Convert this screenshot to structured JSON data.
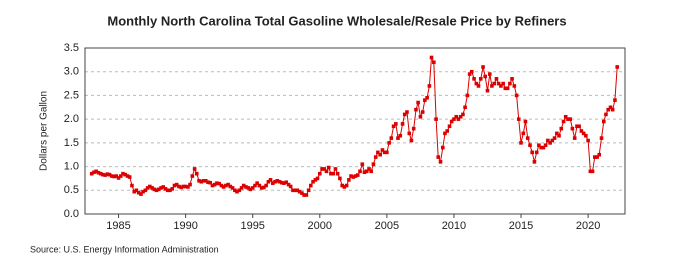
{
  "chart_data": {
    "type": "scatter",
    "title": "Monthly North Carolina Total Gasoline Wholesale/Resale Price by Refiners",
    "y_label": "Dollars per Gallon",
    "source": "Source: U.S. Energy Information Administration",
    "color": "#dd0000",
    "grid": true,
    "xlim": [
      1982.5,
      2022.75
    ],
    "xticks": [
      1985,
      1990,
      1995,
      2000,
      2005,
      2010,
      2015,
      2020
    ],
    "ylim": [
      0,
      3.5
    ],
    "yticks": [
      {
        "value": 0,
        "label": "0.0"
      },
      0.5,
      {
        "value": 1,
        "label": "1.0"
      },
      1.5,
      {
        "value": 2,
        "label": "2.0"
      },
      2.5,
      {
        "value": 3,
        "label": "3.0"
      },
      3.5
    ],
    "x": [
      1983,
      1983.17,
      1983.33,
      1983.5,
      1983.67,
      1983.83,
      1984,
      1984.17,
      1984.33,
      1984.5,
      1984.67,
      1984.83,
      1985,
      1985.17,
      1985.33,
      1985.5,
      1985.67,
      1985.83,
      1986,
      1986.17,
      1986.33,
      1986.5,
      1986.67,
      1986.83,
      1987,
      1987.17,
      1987.33,
      1987.5,
      1987.67,
      1987.83,
      1988,
      1988.17,
      1988.33,
      1988.5,
      1988.67,
      1988.83,
      1989,
      1989.17,
      1989.33,
      1989.5,
      1989.67,
      1989.83,
      1990,
      1990.17,
      1990.33,
      1990.5,
      1990.67,
      1990.83,
      1991,
      1991.17,
      1991.33,
      1991.5,
      1991.67,
      1991.83,
      1992,
      1992.17,
      1992.33,
      1992.5,
      1992.67,
      1992.83,
      1993,
      1993.17,
      1993.33,
      1993.5,
      1993.67,
      1993.83,
      1994,
      1994.17,
      1994.33,
      1994.5,
      1994.67,
      1994.83,
      1995,
      1995.17,
      1995.33,
      1995.5,
      1995.67,
      1995.83,
      1996,
      1996.17,
      1996.33,
      1996.5,
      1996.67,
      1996.83,
      1997,
      1997.17,
      1997.33,
      1997.5,
      1997.67,
      1997.83,
      1998,
      1998.17,
      1998.33,
      1998.5,
      1998.67,
      1998.83,
      1999,
      1999.17,
      1999.33,
      1999.5,
      1999.67,
      1999.83,
      2000,
      2000.17,
      2000.33,
      2000.5,
      2000.67,
      2000.83,
      2001,
      2001.17,
      2001.33,
      2001.5,
      2001.67,
      2001.83,
      2002,
      2002.17,
      2002.33,
      2002.5,
      2002.67,
      2002.83,
      2003,
      2003.17,
      2003.33,
      2003.5,
      2003.67,
      2003.83,
      2004,
      2004.17,
      2004.33,
      2004.5,
      2004.67,
      2004.83,
      2005,
      2005.17,
      2005.33,
      2005.5,
      2005.67,
      2005.83,
      2006,
      2006.17,
      2006.33,
      2006.5,
      2006.67,
      2006.83,
      2007,
      2007.17,
      2007.33,
      2007.5,
      2007.67,
      2007.83,
      2008,
      2008.17,
      2008.33,
      2008.5,
      2008.67,
      2008.83,
      2009,
      2009.17,
      2009.33,
      2009.5,
      2009.67,
      2009.83,
      2010,
      2010.17,
      2010.33,
      2010.5,
      2010.67,
      2010.83,
      2011,
      2011.17,
      2011.33,
      2011.5,
      2011.67,
      2011.83,
      2012,
      2012.17,
      2012.33,
      2012.5,
      2012.67,
      2012.83,
      2013,
      2013.17,
      2013.33,
      2013.5,
      2013.67,
      2013.83,
      2014,
      2014.17,
      2014.33,
      2014.5,
      2014.67,
      2014.83,
      2015,
      2015.17,
      2015.33,
      2015.5,
      2015.67,
      2015.83,
      2016,
      2016.17,
      2016.33,
      2016.5,
      2016.67,
      2016.83,
      2017,
      2017.17,
      2017.33,
      2017.5,
      2017.67,
      2017.83,
      2018,
      2018.17,
      2018.33,
      2018.5,
      2018.67,
      2018.83,
      2019,
      2019.17,
      2019.33,
      2019.5,
      2019.67,
      2019.83,
      2020,
      2020.17,
      2020.33,
      2020.5,
      2020.67,
      2020.83,
      2021,
      2021.17,
      2021.33,
      2021.5,
      2021.67,
      2021.83,
      2022,
      2022.17
    ],
    "values": [
      0.85,
      0.88,
      0.9,
      0.87,
      0.85,
      0.83,
      0.82,
      0.84,
      0.83,
      0.8,
      0.79,
      0.8,
      0.76,
      0.8,
      0.85,
      0.83,
      0.8,
      0.78,
      0.6,
      0.47,
      0.5,
      0.45,
      0.42,
      0.47,
      0.5,
      0.55,
      0.58,
      0.55,
      0.52,
      0.5,
      0.52,
      0.55,
      0.57,
      0.53,
      0.5,
      0.5,
      0.53,
      0.6,
      0.62,
      0.58,
      0.56,
      0.58,
      0.58,
      0.57,
      0.62,
      0.8,
      0.95,
      0.85,
      0.7,
      0.68,
      0.7,
      0.7,
      0.67,
      0.66,
      0.6,
      0.62,
      0.65,
      0.64,
      0.6,
      0.57,
      0.6,
      0.62,
      0.58,
      0.55,
      0.5,
      0.47,
      0.5,
      0.55,
      0.6,
      0.57,
      0.55,
      0.52,
      0.55,
      0.6,
      0.65,
      0.6,
      0.55,
      0.56,
      0.6,
      0.68,
      0.72,
      0.65,
      0.68,
      0.7,
      0.68,
      0.66,
      0.65,
      0.67,
      0.62,
      0.58,
      0.5,
      0.5,
      0.5,
      0.47,
      0.44,
      0.4,
      0.4,
      0.5,
      0.6,
      0.68,
      0.72,
      0.75,
      0.85,
      0.95,
      0.95,
      0.9,
      0.98,
      0.85,
      0.85,
      0.95,
      0.85,
      0.75,
      0.6,
      0.57,
      0.6,
      0.72,
      0.8,
      0.78,
      0.8,
      0.82,
      0.9,
      1.05,
      0.88,
      0.9,
      0.95,
      0.9,
      1.05,
      1.2,
      1.3,
      1.25,
      1.35,
      1.3,
      1.3,
      1.5,
      1.6,
      1.85,
      1.9,
      1.6,
      1.65,
      1.9,
      2.1,
      2.15,
      1.7,
      1.55,
      1.8,
      2.2,
      2.35,
      2.05,
      2.15,
      2.4,
      2.45,
      2.7,
      3.3,
      3.2,
      2.0,
      1.2,
      1.1,
      1.4,
      1.7,
      1.75,
      1.85,
      1.95,
      2.0,
      2.05,
      2.0,
      2.05,
      2.1,
      2.25,
      2.5,
      2.95,
      3.0,
      2.85,
      2.75,
      2.7,
      2.85,
      3.1,
      2.9,
      2.6,
      2.95,
      2.7,
      2.75,
      2.85,
      2.75,
      2.7,
      2.75,
      2.65,
      2.65,
      2.75,
      2.85,
      2.7,
      2.5,
      2.0,
      1.5,
      1.7,
      1.95,
      1.6,
      1.45,
      1.3,
      1.1,
      1.3,
      1.45,
      1.4,
      1.4,
      1.45,
      1.55,
      1.5,
      1.55,
      1.6,
      1.7,
      1.65,
      1.8,
      1.95,
      2.05,
      2.0,
      2.0,
      1.8,
      1.6,
      1.85,
      1.85,
      1.75,
      1.7,
      1.65,
      1.55,
      0.9,
      0.9,
      1.2,
      1.2,
      1.25,
      1.6,
      1.95,
      2.1,
      2.2,
      2.25,
      2.2,
      2.4,
      3.1
    ]
  }
}
